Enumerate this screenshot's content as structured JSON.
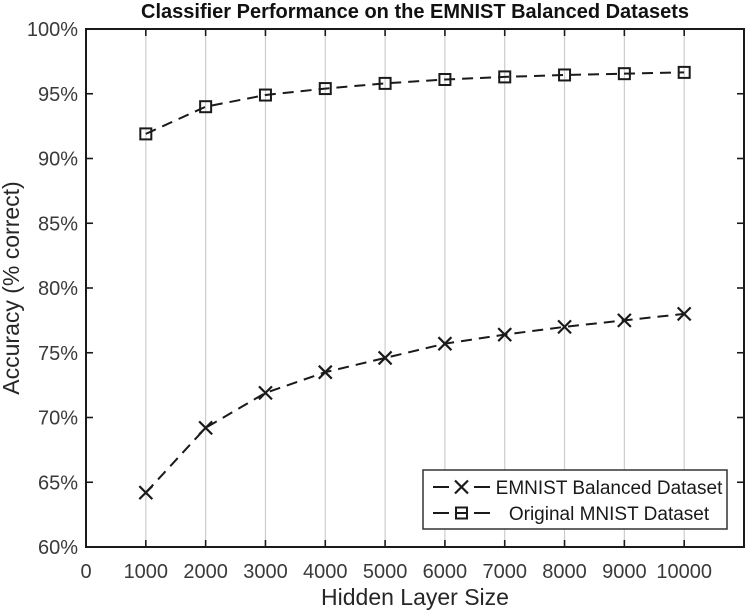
{
  "figure": {
    "kind": "matlab-style line chart",
    "background": "#ffffff"
  },
  "chart_data": {
    "type": "line",
    "title": "Classifier Performance on the EMNIST Balanced Datasets",
    "xlabel": "Hidden Layer Size",
    "ylabel": "Accuracy (% correct)",
    "x": [
      1000,
      2000,
      3000,
      4000,
      5000,
      6000,
      7000,
      8000,
      9000,
      10000
    ],
    "series": [
      {
        "name": "EMNIST Balanced Dataset",
        "marker": "x",
        "linestyle": "dashed",
        "color": "#1a1a1a",
        "values": [
          64.2,
          69.2,
          71.9,
          73.5,
          74.6,
          75.7,
          76.4,
          77.0,
          77.5,
          78.0
        ]
      },
      {
        "name": "Original MNIST Dataset",
        "marker": "square",
        "linestyle": "dashed",
        "color": "#1a1a1a",
        "values": [
          91.9,
          94.0,
          94.9,
          95.4,
          95.8,
          96.1,
          96.3,
          96.45,
          96.55,
          96.65
        ]
      }
    ],
    "xlim": [
      0,
      11000
    ],
    "ylim": [
      60,
      100
    ],
    "xticks": [
      0,
      1000,
      2000,
      3000,
      4000,
      5000,
      6000,
      7000,
      8000,
      9000,
      10000
    ],
    "xtick_labels": [
      "0",
      "1000",
      "2000",
      "3000",
      "4000",
      "5000",
      "6000",
      "7000",
      "8000",
      "9000",
      "10000"
    ],
    "yticks": [
      60,
      65,
      70,
      75,
      80,
      85,
      90,
      95,
      100
    ],
    "ytick_labels": [
      "60%",
      "65%",
      "70%",
      "75%",
      "80%",
      "85%",
      "90%",
      "95%",
      "100%"
    ],
    "grid": "vertical-only",
    "legend_position": "lower-right",
    "colors": {
      "line": "#1a1a1a",
      "grid": "#cdcdcd",
      "axis": "#1a1a1a",
      "text": "#262626",
      "legend_border": "#333333",
      "background": "#ffffff"
    }
  }
}
